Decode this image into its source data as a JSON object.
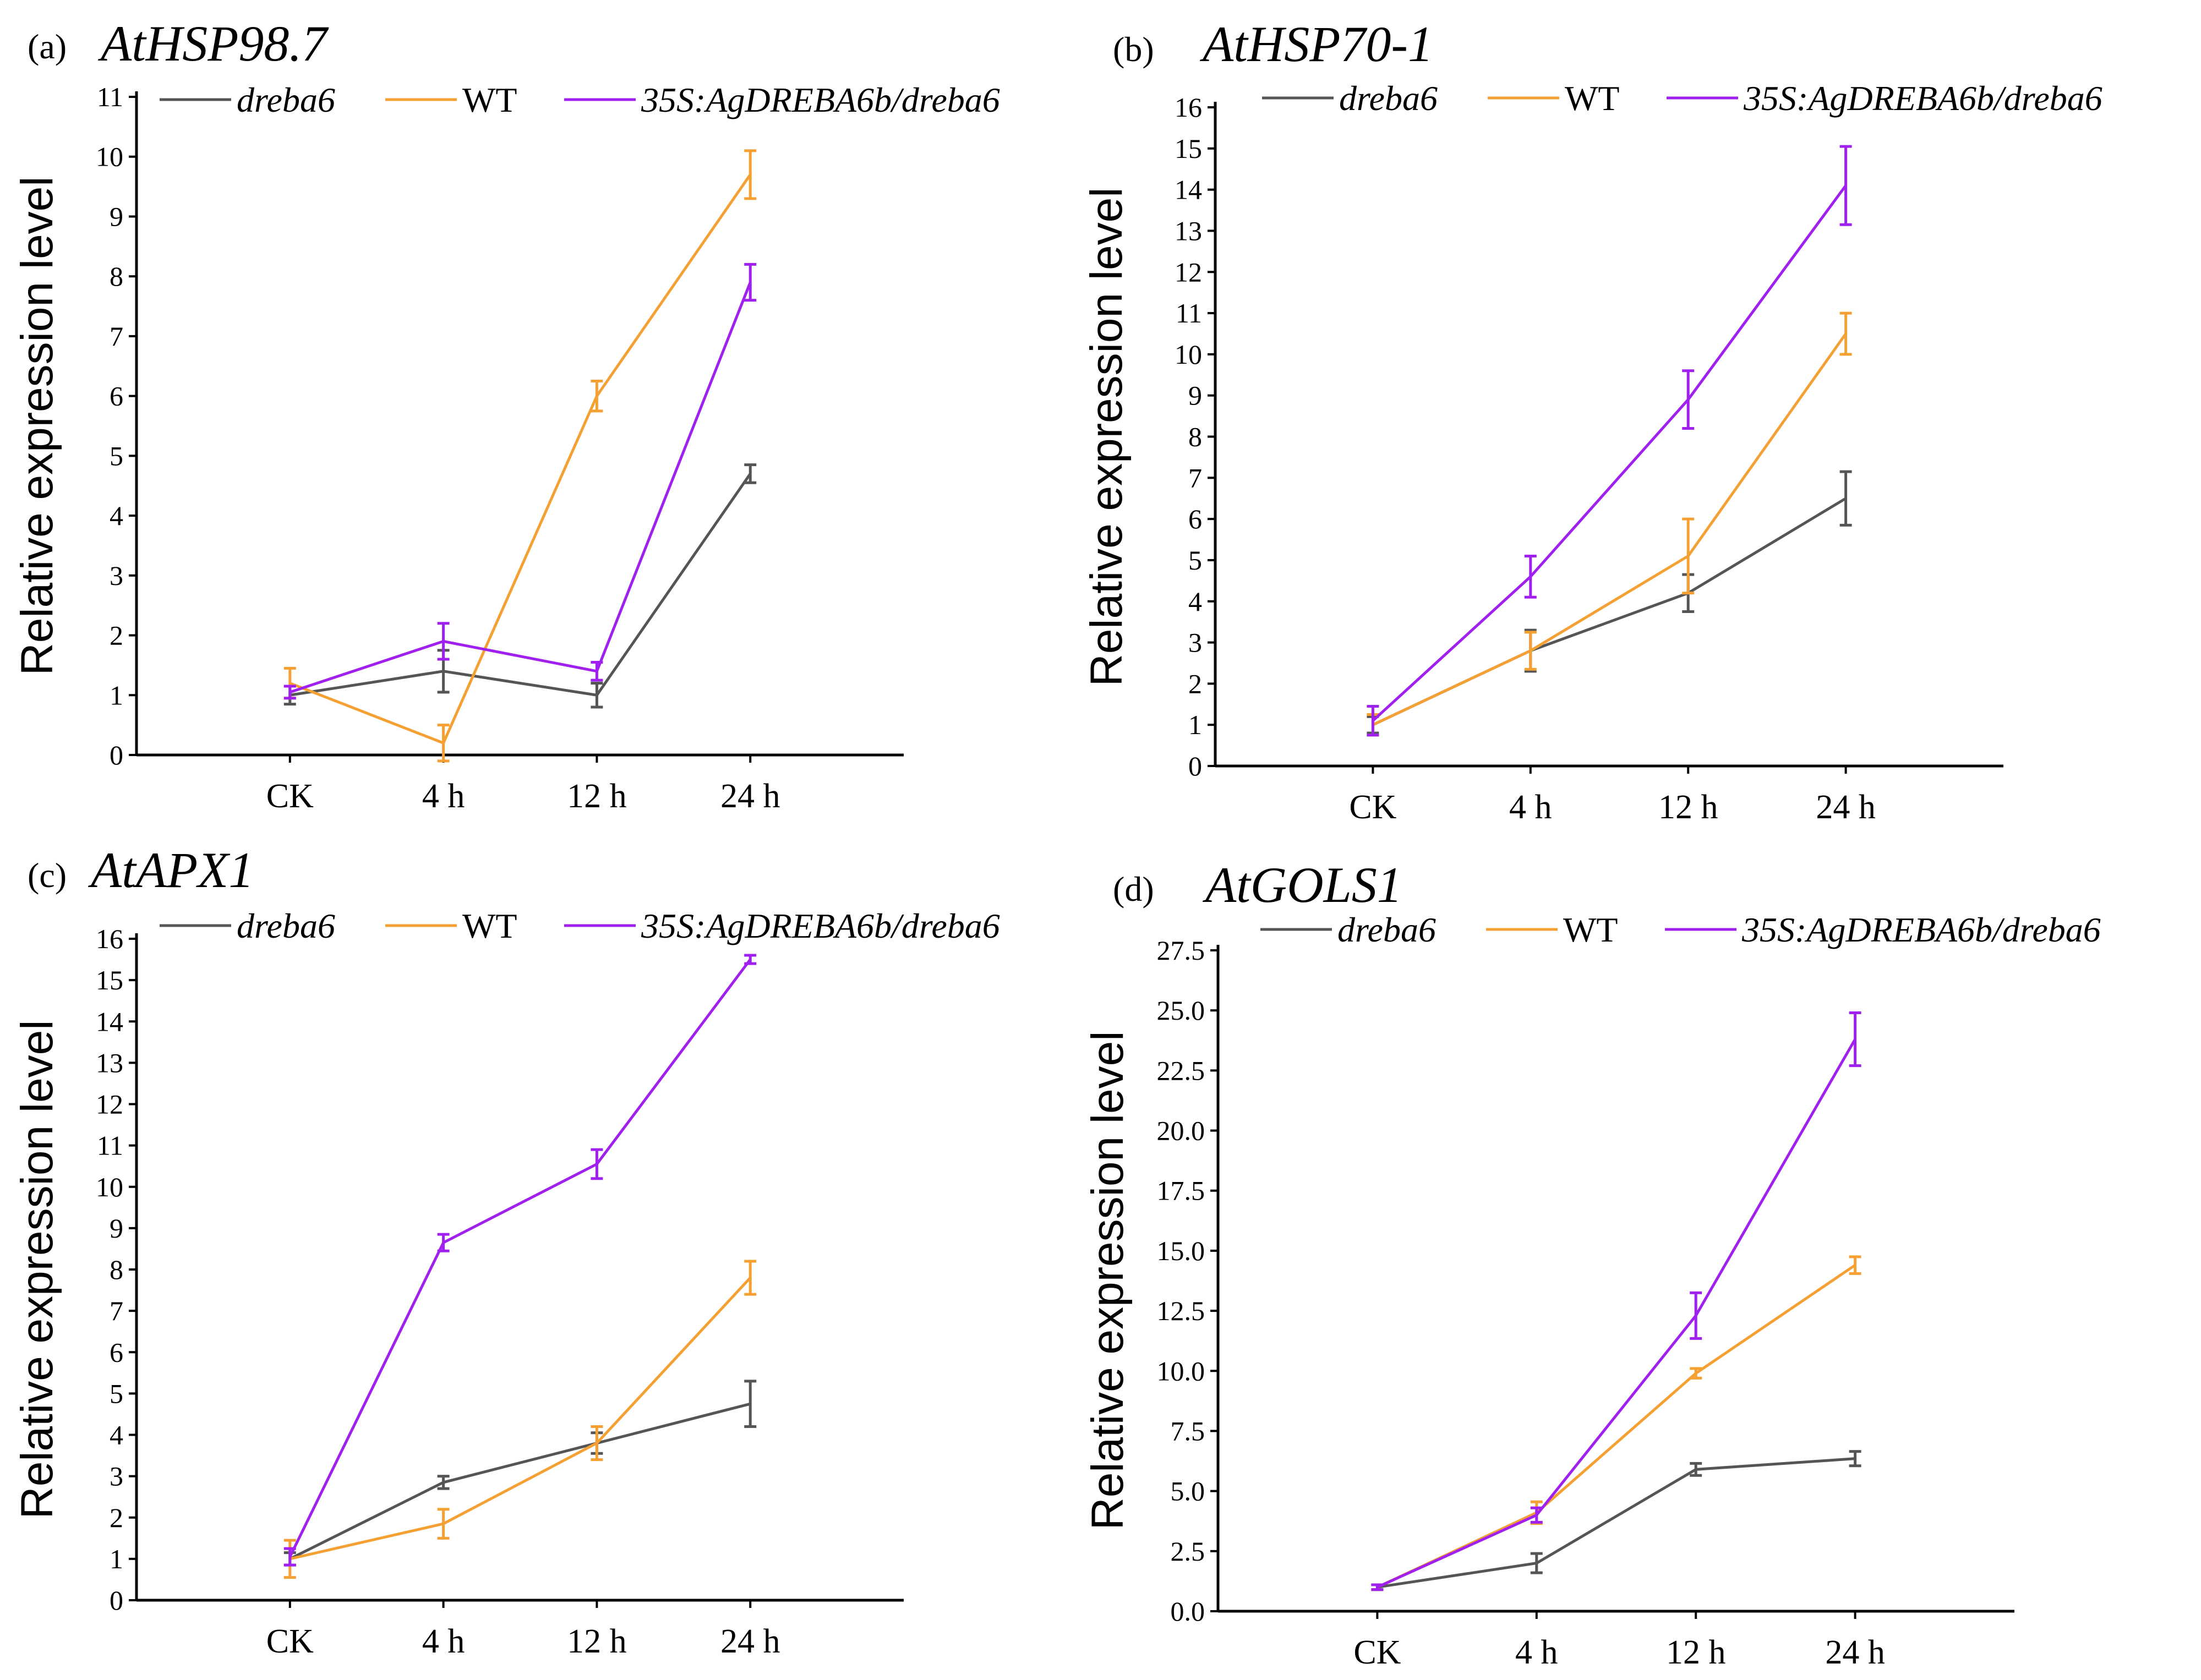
{
  "colors": {
    "dreba6": "#555555",
    "WT": "#F5A033",
    "35S:AgDREBA6b/dreba6": "#A020F0"
  },
  "legend": [
    {
      "name": "dreba6",
      "italic": true
    },
    {
      "name": "WT",
      "italic": false
    },
    {
      "name": "35S:AgDREBA6b/dreba6",
      "italic": true
    }
  ],
  "chart_data": [
    {
      "panel": "(a)",
      "title": "AtHSP98.7",
      "type": "line",
      "ylabel": "Relative expression level",
      "categories": [
        "CK",
        "4 h",
        "12 h",
        "24 h"
      ],
      "ylim": [
        0,
        11
      ],
      "yticks": [
        "0",
        "1",
        "2",
        "3",
        "4",
        "5",
        "6",
        "7",
        "8",
        "9",
        "10",
        "11"
      ],
      "series": [
        {
          "name": "dreba6",
          "values": [
            1.0,
            1.4,
            1.0,
            4.7
          ],
          "errors": [
            0.15,
            0.35,
            0.2,
            0.15
          ]
        },
        {
          "name": "WT",
          "values": [
            1.2,
            0.2,
            6.0,
            9.7
          ],
          "errors": [
            0.25,
            0.3,
            0.25,
            0.4
          ]
        },
        {
          "name": "35S:AgDREBA6b/dreba6",
          "values": [
            1.05,
            1.9,
            1.4,
            7.9
          ],
          "errors": [
            0.1,
            0.3,
            0.15,
            0.3
          ]
        }
      ]
    },
    {
      "panel": "(b)",
      "title": "AtHSP70-1",
      "type": "line",
      "ylabel": "Relative expression level",
      "categories": [
        "CK",
        "4 h",
        "12 h",
        "24 h"
      ],
      "ylim": [
        0,
        16
      ],
      "yticks": [
        "0",
        "1",
        "2",
        "3",
        "4",
        "5",
        "6",
        "7",
        "8",
        "9",
        "10",
        "11",
        "12",
        "13",
        "14",
        "15",
        "16"
      ],
      "series": [
        {
          "name": "dreba6",
          "values": [
            1.0,
            2.8,
            4.2,
            6.5
          ],
          "errors": [
            0.2,
            0.5,
            0.45,
            0.65
          ]
        },
        {
          "name": "WT",
          "values": [
            1.0,
            2.8,
            5.1,
            10.5
          ],
          "errors": [
            0.25,
            0.45,
            0.9,
            0.5
          ]
        },
        {
          "name": "35S:AgDREBA6b/dreba6",
          "values": [
            1.1,
            4.6,
            8.9,
            14.1
          ],
          "errors": [
            0.35,
            0.5,
            0.7,
            0.95
          ]
        }
      ]
    },
    {
      "panel": "(c)",
      "title": "AtAPX1",
      "type": "line",
      "ylabel": "Relative expression level",
      "categories": [
        "CK",
        "4 h",
        "12 h",
        "24 h"
      ],
      "ylim": [
        0,
        16
      ],
      "yticks": [
        "0",
        "1",
        "2",
        "3",
        "4",
        "5",
        "6",
        "7",
        "8",
        "9",
        "10",
        "11",
        "12",
        "13",
        "14",
        "15",
        "16"
      ],
      "series": [
        {
          "name": "dreba6",
          "values": [
            1.0,
            2.85,
            3.8,
            4.75
          ],
          "errors": [
            0.15,
            0.15,
            0.25,
            0.55
          ]
        },
        {
          "name": "WT",
          "values": [
            1.0,
            1.85,
            3.8,
            7.8
          ],
          "errors": [
            0.45,
            0.35,
            0.4,
            0.4
          ]
        },
        {
          "name": "35S:AgDREBA6b/dreba6",
          "values": [
            1.05,
            8.65,
            10.55,
            15.5
          ],
          "errors": [
            0.2,
            0.2,
            0.35,
            0.1
          ]
        }
      ]
    },
    {
      "panel": "(d)",
      "title": "AtGOLS1",
      "type": "line",
      "ylabel": "Relative expression level",
      "categories": [
        "CK",
        "4 h",
        "12 h",
        "24 h"
      ],
      "ylim": [
        0,
        27.5
      ],
      "yticks": [
        "0.0",
        "2.5",
        "5.0",
        "7.5",
        "10.0",
        "12.5",
        "15.0",
        "17.5",
        "20.0",
        "22.5",
        "25.0",
        "27.5"
      ],
      "series": [
        {
          "name": "dreba6",
          "values": [
            1.0,
            2.0,
            5.9,
            6.35
          ],
          "errors": [
            0.1,
            0.4,
            0.25,
            0.3
          ]
        },
        {
          "name": "WT",
          "values": [
            1.0,
            4.1,
            9.9,
            14.4
          ],
          "errors": [
            0.1,
            0.45,
            0.2,
            0.35
          ]
        },
        {
          "name": "35S:AgDREBA6b/dreba6",
          "values": [
            1.0,
            4.0,
            12.3,
            23.8
          ],
          "errors": [
            0.1,
            0.3,
            0.95,
            1.1
          ]
        }
      ]
    }
  ]
}
